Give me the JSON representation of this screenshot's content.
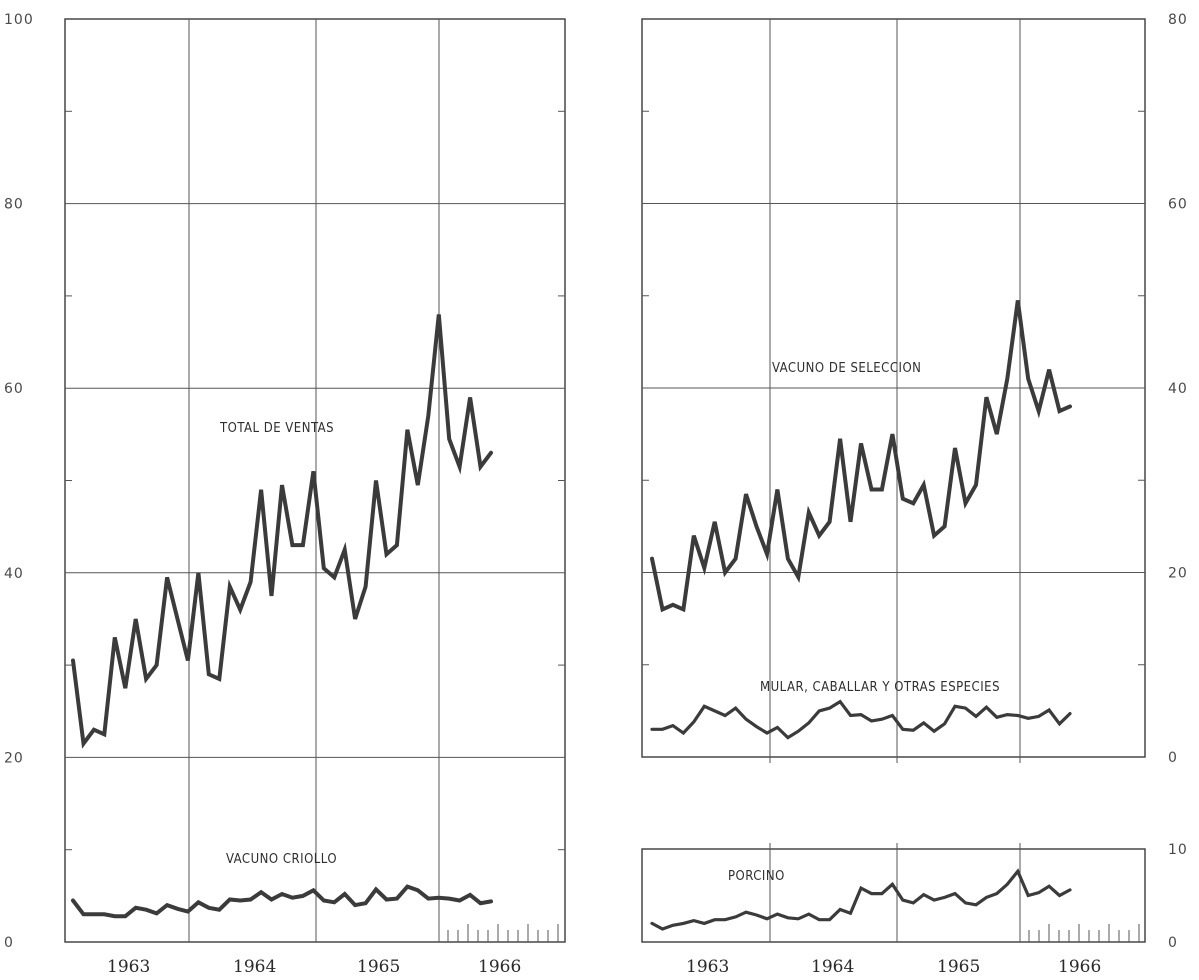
{
  "chart_data": [
    {
      "type": "line",
      "title": "",
      "x_start_year": 1963,
      "x_tick_labels": [
        "1963",
        "1964",
        "1965",
        "1966"
      ],
      "y_tick_labels": [
        "0",
        "20",
        "40",
        "60",
        "80",
        "100"
      ],
      "ylim": [
        0,
        100
      ],
      "grid": true,
      "series": [
        {
          "name": "TOTAL DE VENTAS",
          "values": [
            30.5,
            21.5,
            23,
            22.5,
            33,
            27.5,
            35,
            28.5,
            30,
            39.5,
            35,
            30.5,
            40,
            29,
            28.5,
            38.5,
            36,
            39,
            49,
            37.5,
            49.5,
            43,
            43,
            51,
            40.5,
            39.5,
            42.5,
            35,
            38.5,
            50,
            42,
            43,
            55.5,
            49.5,
            57,
            68,
            54.5,
            51.5,
            59,
            51.5,
            53
          ]
        },
        {
          "name": "VACUNO CRIOLLO",
          "values": [
            4.5,
            3,
            3,
            3,
            2.8,
            2.8,
            3.7,
            3.5,
            3.1,
            4,
            3.6,
            3.3,
            4.3,
            3.7,
            3.5,
            4.6,
            4.5,
            4.6,
            5.4,
            4.6,
            5.2,
            4.8,
            5,
            5.6,
            4.5,
            4.3,
            5.2,
            4,
            4.2,
            5.7,
            4.6,
            4.7,
            6,
            5.6,
            4.7,
            4.8,
            4.7,
            4.5,
            5.1,
            4.2,
            4.4
          ]
        }
      ]
    },
    {
      "type": "line",
      "title": "",
      "x_start_year": 1963,
      "x_tick_labels": [
        "1963",
        "1964",
        "1965",
        "1966"
      ],
      "y_tick_labels": [
        "0",
        "20",
        "40",
        "60",
        "80"
      ],
      "ylim": [
        0,
        80
      ],
      "grid": true,
      "series": [
        {
          "name": "VACUNO DE SELECCION",
          "values": [
            21.5,
            16,
            16.5,
            16,
            24,
            20.5,
            25.5,
            20,
            21.5,
            28.5,
            25,
            22,
            29,
            21.5,
            19.5,
            26.5,
            24,
            25.5,
            34.5,
            25.5,
            34,
            29,
            29,
            35,
            28,
            27.5,
            29.5,
            24,
            25,
            33.5,
            27.5,
            29.5,
            39,
            35,
            41,
            49.5,
            41,
            37.5,
            42,
            37.5,
            38
          ]
        },
        {
          "name": "MULAR, CABALLAR Y OTRAS ESPECIES",
          "values": [
            3,
            3,
            3.4,
            2.6,
            3.8,
            5.5,
            5,
            4.5,
            5.3,
            4.1,
            3.3,
            2.6,
            3.2,
            2.1,
            2.8,
            3.7,
            5,
            5.3,
            6,
            4.5,
            4.6,
            3.9,
            4.1,
            4.5,
            3,
            2.9,
            3.7,
            2.8,
            3.6,
            5.5,
            5.3,
            4.4,
            5.4,
            4.3,
            4.6,
            4.5,
            4.2,
            4.4,
            5.1,
            3.6,
            4.7
          ]
        }
      ]
    },
    {
      "type": "line",
      "title": "",
      "x_start_year": 1963,
      "x_tick_labels": [
        "1963",
        "1964",
        "1965",
        "1966"
      ],
      "y_tick_labels": [
        "0",
        "10"
      ],
      "ylim": [
        0,
        10
      ],
      "grid": true,
      "series": [
        {
          "name": "PORCINO",
          "values": [
            2,
            1.4,
            1.8,
            2,
            2.3,
            2,
            2.4,
            2.4,
            2.7,
            3.2,
            2.9,
            2.5,
            3,
            2.6,
            2.5,
            3,
            2.4,
            2.4,
            3.5,
            3.1,
            5.8,
            5.2,
            5.2,
            6.2,
            4.5,
            4.2,
            5.1,
            4.5,
            4.8,
            5.2,
            4.2,
            4,
            4.8,
            5.2,
            6.2,
            7.6,
            5,
            5.3,
            6,
            5,
            5.6
          ]
        }
      ]
    }
  ]
}
